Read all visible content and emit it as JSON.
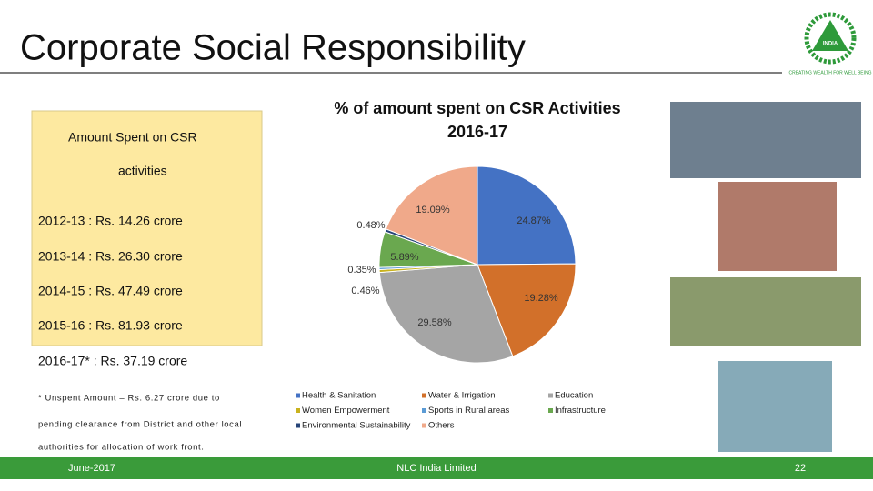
{
  "slide": {
    "title": "Corporate Social Responsibility",
    "logo_text": "INDIA",
    "logo_tagline": "CREATING WEALTH FOR WELL BEING",
    "box_heading_1": "Amount Spent on CSR",
    "box_heading_2": "activities",
    "amounts": [
      "2012-13  : Rs. 14.26 crore",
      "2013-14  : Rs. 26.30 crore",
      "2014-15  : Rs. 47.49 crore",
      "2015-16  : Rs. 81.93 crore",
      "2016-17*   : Rs. 37.19 crore"
    ],
    "note_lines": [
      "* Unspent Amount – Rs. 6.27 crore due to",
      "pending clearance from District and other local",
      "authorities for allocation of work front."
    ],
    "footer_left": "June-2017",
    "footer_center": "NLC India Limited",
    "footer_right": "22"
  },
  "chart_data": {
    "type": "pie",
    "title_lines": [
      "% of amount spent on CSR Activities",
      "2016-17"
    ],
    "categories": [
      "Health & Sanitation",
      "Water & Irrigation",
      "Education",
      "Women Empowerment",
      "Sports in Rural areas",
      "Infrastructure",
      "Environmental Sustainability",
      "Others"
    ],
    "values": [
      24.87,
      19.28,
      29.58,
      0.46,
      0.35,
      5.89,
      0.48,
      19.09
    ],
    "value_labels": [
      "24.87%",
      "19.28%",
      "29.58%",
      "0.46%",
      "0.35%",
      "5.89%",
      "0.48%",
      "19.09%"
    ],
    "colors": [
      "#4472c4",
      "#d2702a",
      "#a5a5a5",
      "#c9b21d",
      "#5b9bd5",
      "#6aa84f",
      "#264478",
      "#f0a98a"
    ],
    "legend": "bottom"
  }
}
